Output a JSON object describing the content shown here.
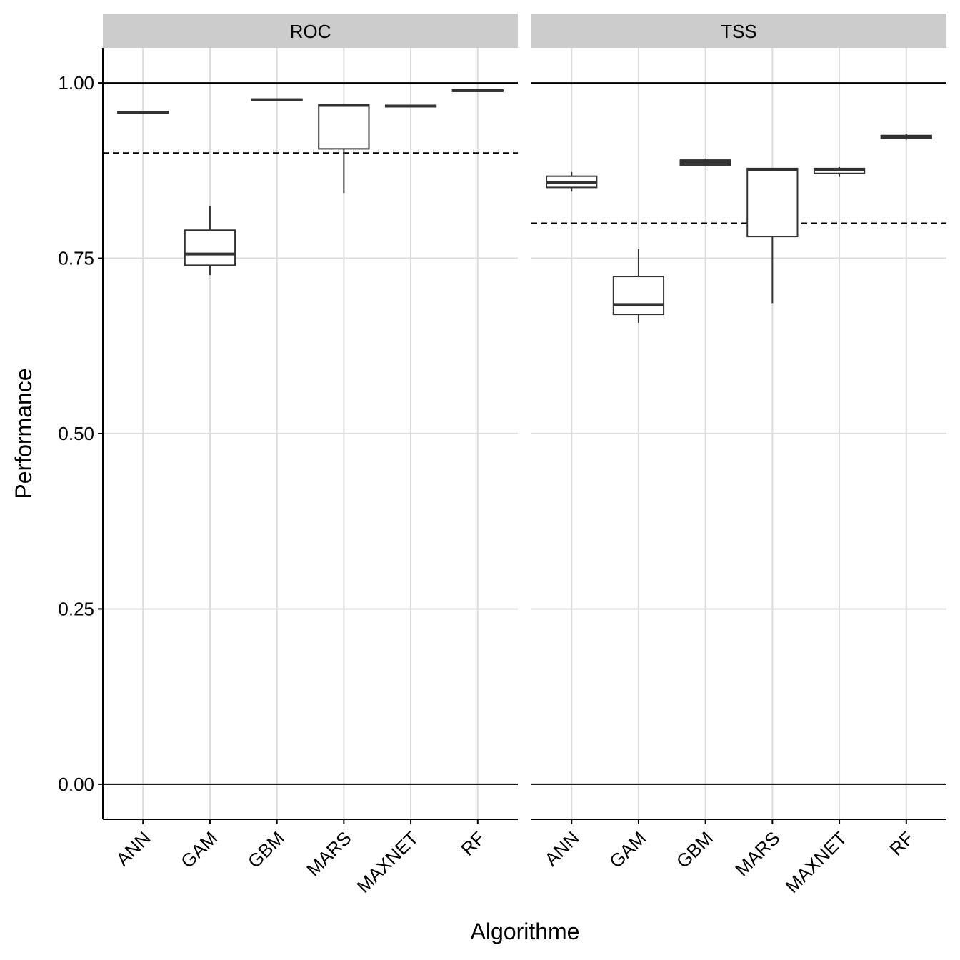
{
  "axis_labels": {
    "x": "Algorithme",
    "y": "Performance"
  },
  "chart_data": [
    {
      "type": "box",
      "title": "ROC",
      "show_ytick_labels": true,
      "categories": [
        "ANN",
        "GAM",
        "GBM",
        "MARS",
        "MAXNET",
        "RF"
      ],
      "boxes": [
        {
          "min": 0.957,
          "q1": 0.957,
          "median": 0.958,
          "q3": 0.959,
          "max": 0.959
        },
        {
          "min": 0.726,
          "q1": 0.74,
          "median": 0.756,
          "q3": 0.79,
          "max": 0.825
        },
        {
          "min": 0.975,
          "q1": 0.975,
          "median": 0.976,
          "q3": 0.977,
          "max": 0.977
        },
        {
          "min": 0.843,
          "q1": 0.906,
          "median": 0.968,
          "q3": 0.969,
          "max": 0.97
        },
        {
          "min": 0.966,
          "q1": 0.966,
          "median": 0.967,
          "q3": 0.968,
          "max": 0.968
        },
        {
          "min": 0.988,
          "q1": 0.988,
          "median": 0.989,
          "q3": 0.99,
          "max": 0.99
        }
      ],
      "hlines": [
        {
          "value": 1,
          "style": "solid"
        },
        {
          "value": 0,
          "style": "solid"
        },
        {
          "value": 0.9,
          "style": "dashed"
        }
      ],
      "ylim": [
        -0.05,
        1.05
      ],
      "yticks": [
        {
          "value": 0,
          "label": "0.00"
        },
        {
          "value": 0.25,
          "label": "0.25"
        },
        {
          "value": 0.5,
          "label": "0.50"
        },
        {
          "value": 0.75,
          "label": "0.75"
        },
        {
          "value": 1,
          "label": "1.00"
        }
      ],
      "grid": true
    },
    {
      "type": "box",
      "title": "TSS",
      "show_ytick_labels": false,
      "categories": [
        "ANN",
        "GAM",
        "GBM",
        "MARS",
        "MAXNET",
        "RF"
      ],
      "boxes": [
        {
          "min": 0.845,
          "q1": 0.851,
          "median": 0.858,
          "q3": 0.867,
          "max": 0.873
        },
        {
          "min": 0.658,
          "q1": 0.67,
          "median": 0.684,
          "q3": 0.724,
          "max": 0.763
        },
        {
          "min": 0.881,
          "q1": 0.883,
          "median": 0.886,
          "q3": 0.89,
          "max": 0.892
        },
        {
          "min": 0.686,
          "q1": 0.781,
          "median": 0.876,
          "q3": 0.878,
          "max": 0.878
        },
        {
          "min": 0.866,
          "q1": 0.871,
          "median": 0.876,
          "q3": 0.878,
          "max": 0.88
        },
        {
          "min": 0.919,
          "q1": 0.921,
          "median": 0.923,
          "q3": 0.925,
          "max": 0.927
        }
      ],
      "hlines": [
        {
          "value": 1,
          "style": "solid"
        },
        {
          "value": 0,
          "style": "solid"
        },
        {
          "value": 0.8,
          "style": "dashed"
        }
      ],
      "ylim": [
        -0.05,
        1.05
      ],
      "yticks": [
        {
          "value": 0,
          "label": "0.00"
        },
        {
          "value": 0.25,
          "label": "0.25"
        },
        {
          "value": 0.5,
          "label": "0.50"
        },
        {
          "value": 0.75,
          "label": "0.75"
        },
        {
          "value": 1,
          "label": "1.00"
        }
      ],
      "grid": true
    }
  ]
}
